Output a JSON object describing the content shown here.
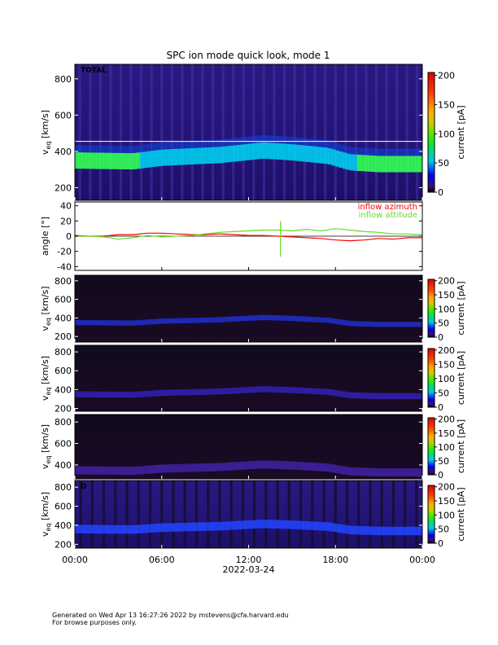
{
  "chart_data": [
    {
      "type": "heatmap",
      "title": "SPC ion mode quick look, mode 1",
      "panel_label": "TOTAL",
      "ylabel": "v",
      "ylabel_sub": "eq",
      "ylabel_unit": " [km/s]",
      "yticks": [
        200,
        400,
        600,
        800
      ],
      "ylim": [
        130,
        880
      ],
      "colorbar": {
        "label": "current [pA]",
        "ticks": [
          0,
          50,
          100,
          150,
          200
        ],
        "range": [
          0,
          205
        ]
      },
      "x_range_hours": [
        0,
        24
      ],
      "core_speed_kms": [
        [
          0,
          350
        ],
        [
          4,
          345
        ],
        [
          6,
          365
        ],
        [
          10,
          380
        ],
        [
          13,
          405
        ],
        [
          15,
          395
        ],
        [
          17.5,
          375
        ],
        [
          19,
          340
        ],
        [
          21,
          330
        ],
        [
          24,
          330
        ]
      ],
      "white_line_kms": 455
    },
    {
      "type": "line",
      "ylabel": "angle [°]",
      "yticks": [
        -40,
        -20,
        0,
        20,
        40
      ],
      "ylim": [
        -45,
        45
      ],
      "x_range_hours": [
        0,
        24
      ],
      "series": [
        {
          "name": "inflow azimuth",
          "color": "#ff0000",
          "x": [
            0,
            1,
            2,
            3,
            4,
            5,
            6,
            7,
            8,
            9,
            10,
            11,
            12,
            13,
            14,
            15,
            16,
            17,
            18,
            19,
            20,
            21,
            22,
            23,
            24
          ],
          "y": [
            1,
            0,
            0,
            2,
            2,
            4,
            4,
            3,
            2,
            2,
            3,
            2,
            1,
            1,
            0,
            -1,
            -2,
            -3,
            -5,
            -6,
            -5,
            -3,
            -4,
            -2,
            -2
          ]
        },
        {
          "name": "inflow attitude",
          "color": "#66dd22",
          "x": [
            0,
            1,
            2,
            3,
            4,
            5,
            6,
            7,
            8,
            9,
            10,
            11,
            12,
            13,
            14,
            15,
            16,
            17,
            18,
            19,
            20,
            21,
            22,
            23,
            24
          ],
          "y": [
            0,
            0,
            -1,
            -4,
            -2,
            1,
            -1,
            0,
            1,
            3,
            5,
            6,
            7,
            8,
            8,
            7,
            9,
            7,
            10,
            8,
            6,
            5,
            3,
            3,
            2
          ]
        }
      ],
      "spike": {
        "x": 14.2,
        "y": [
          -27,
          20
        ]
      }
    },
    {
      "type": "heatmap",
      "ylabel": "v",
      "ylabel_sub": "eq",
      "ylabel_unit": " [km/s]",
      "yticks": [
        200,
        400,
        600,
        800
      ],
      "ylim": [
        140,
        860
      ],
      "colorbar": {
        "label": "current [pA]",
        "ticks": [
          0,
          50,
          100,
          150,
          200
        ],
        "range": [
          0,
          205
        ]
      },
      "x_range_hours": [
        0,
        24
      ]
    },
    {
      "type": "heatmap",
      "ylabel": "v",
      "ylabel_sub": "eq",
      "ylabel_unit": " [km/s]",
      "yticks": [
        200,
        400,
        600,
        800
      ],
      "ylim": [
        170,
        870
      ],
      "colorbar": {
        "label": "current [pA]",
        "ticks": [
          0,
          50,
          100,
          150,
          200
        ],
        "range": [
          0,
          205
        ]
      },
      "x_range_hours": [
        0,
        24
      ]
    },
    {
      "type": "heatmap",
      "ylabel": "v",
      "ylabel_sub": "eq",
      "ylabel_unit": " [km/s]",
      "yticks": [
        400,
        600,
        800
      ],
      "ylim": [
        270,
        870
      ],
      "colorbar": {
        "label": "current [pA]",
        "ticks": [
          0,
          50,
          100,
          150,
          200
        ],
        "range": [
          0,
          205
        ]
      },
      "x_range_hours": [
        0,
        24
      ]
    },
    {
      "type": "heatmap",
      "panel_label": "D",
      "ylabel": "v",
      "ylabel_sub": "eq",
      "ylabel_unit": " [km/s]",
      "yticks": [
        200,
        400,
        600,
        800
      ],
      "ylim": [
        160,
        870
      ],
      "colorbar": {
        "label": "current [pA]",
        "ticks": [
          0,
          50,
          100,
          150,
          200
        ],
        "range": [
          0,
          205
        ]
      },
      "x_range_hours": [
        0,
        24
      ]
    }
  ],
  "xaxis": {
    "ticks": [
      "00:00",
      "06:00",
      "12:00",
      "18:00",
      "00:00"
    ],
    "date": "2022-03-24"
  },
  "footer": {
    "line1": "Generated on Wed Apr 13 16:27:26 2022 by mstevens@cfa.harvard.edu",
    "line2": "For browse purposes only."
  },
  "colors": {
    "background_dark": "#1a0f3c",
    "panel_bg_dark": "#0a0410",
    "core_green": "#33ff55",
    "core_cyan": "#00ccee",
    "core_blue": "#2244ff",
    "azimuth": "#ff0000",
    "attitude": "#66dd22"
  }
}
